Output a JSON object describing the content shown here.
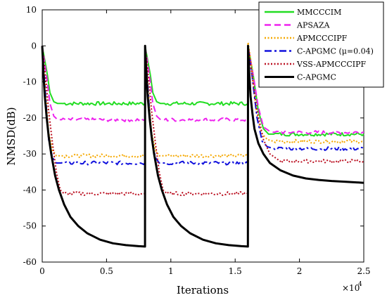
{
  "chart_data": {
    "type": "line",
    "title": "",
    "xlabel": "Iterations",
    "ylabel": "NMSD(dB)",
    "x_multiplier_label": "×10",
    "x_multiplier_exp": "4",
    "xlim": [
      0,
      25000
    ],
    "ylim": [
      -60,
      10
    ],
    "x_tick_values": [
      0,
      5000,
      10000,
      15000,
      20000,
      25000
    ],
    "x_tick_labels": [
      "0",
      "0.5",
      "1",
      "1.5",
      "2",
      "2.5"
    ],
    "y_ticks": [
      10,
      0,
      -10,
      -20,
      -30,
      -40,
      -50,
      -60
    ],
    "grid": false,
    "legend_position": "top-right",
    "change_points": [
      8000,
      16000
    ],
    "series": [
      {
        "name": "MMCCCIM",
        "color": "#22dd22",
        "style": "solid",
        "x": [
          0,
          400,
          600,
          900,
          1200,
          1500,
          7990,
          8000,
          8400,
          8600,
          8900,
          9200,
          9500,
          15990,
          16000,
          16400,
          16800,
          17200,
          17600,
          18000,
          25000
        ],
        "y": [
          0,
          -8,
          -13,
          -15.5,
          -16,
          -16,
          -16,
          0,
          -8,
          -13,
          -15.5,
          -16,
          -16,
          -16,
          0,
          -8,
          -18,
          -23,
          -24.5,
          -24.5,
          -24.5
        ]
      },
      {
        "name": "APSAZA",
        "color": "#ee22ee",
        "style": "dashed",
        "x": [
          0,
          400,
          600,
          900,
          1200,
          1500,
          7990,
          8000,
          8400,
          8600,
          8900,
          9200,
          9500,
          15990,
          16000,
          16400,
          16800,
          17200,
          17600,
          18000,
          25000
        ],
        "y": [
          0,
          -10,
          -16,
          -19.5,
          -20.5,
          -20.5,
          -20.5,
          0,
          -10,
          -16,
          -19.5,
          -20.5,
          -20.5,
          -20.5,
          0,
          -8,
          -17,
          -22.5,
          -23.5,
          -24,
          -24
        ]
      },
      {
        "name": "APMCCCIPF",
        "color": "#f5a800",
        "style": "dotted",
        "x": [
          0,
          300,
          500,
          800,
          1100,
          1500,
          7990,
          8000,
          8300,
          8500,
          8800,
          9100,
          9500,
          15990,
          16000,
          16300,
          16600,
          17000,
          17500,
          18000,
          25000
        ],
        "y": [
          0,
          -15,
          -24,
          -29,
          -30.5,
          -30.5,
          -30.5,
          0,
          -15,
          -24,
          -29,
          -30.5,
          -30.5,
          -30.5,
          1,
          -6,
          -17,
          -24,
          -26,
          -26.5,
          -26.5
        ]
      },
      {
        "name": "C-APGMC (μ=0.04)",
        "color": "#1111dd",
        "style": "dashdot",
        "x": [
          0,
          300,
          500,
          800,
          1100,
          1500,
          7990,
          8000,
          8300,
          8500,
          8800,
          9100,
          9500,
          15990,
          16000,
          16300,
          16700,
          17100,
          17500,
          18000,
          25000
        ],
        "y": [
          0,
          -16,
          -26,
          -31,
          -32.5,
          -32.5,
          -32.5,
          0,
          -16,
          -26,
          -31,
          -32.5,
          -32.5,
          -32.5,
          0,
          -8,
          -20,
          -26.5,
          -28,
          -28.5,
          -28.5
        ]
      },
      {
        "name": "VSS-APMCCCIPF",
        "color": "#bb1122",
        "style": "dotted",
        "x": [
          0,
          300,
          500,
          800,
          1100,
          1400,
          1700,
          7990,
          8000,
          8300,
          8500,
          8800,
          9100,
          9400,
          9700,
          15990,
          16000,
          16300,
          16700,
          17200,
          17700,
          18500,
          25000
        ],
        "y": [
          0,
          -10,
          -18,
          -27,
          -35,
          -40,
          -41,
          -41,
          0,
          -10,
          -18,
          -27,
          -35,
          -40,
          -41,
          -41,
          0,
          -8,
          -18,
          -26,
          -30,
          -32,
          -32
        ]
      },
      {
        "name": "C-APGMC",
        "color": "#000000",
        "style": "solid",
        "x": [
          0,
          100,
          200,
          350,
          500,
          700,
          1000,
          1300,
          1700,
          2200,
          2800,
          3500,
          4500,
          5500,
          6500,
          7500,
          7990,
          8000,
          8100,
          8200,
          8350,
          8500,
          8700,
          9000,
          9300,
          9700,
          10200,
          10800,
          11500,
          12500,
          13500,
          14500,
          15500,
          15990,
          16000,
          16100,
          16200,
          16350,
          16500,
          16800,
          17200,
          17700,
          18500,
          19500,
          20500,
          21500,
          22500,
          23500,
          25000
        ],
        "y": [
          0,
          -8,
          -14,
          -20,
          -25,
          -30,
          -36,
          -40,
          -44,
          -47.5,
          -50,
          -52,
          -53.8,
          -54.8,
          -55.3,
          -55.6,
          -55.7,
          0,
          -8,
          -14,
          -20,
          -25,
          -30,
          -36,
          -40,
          -44,
          -47.5,
          -50,
          -52,
          -53.8,
          -54.8,
          -55.3,
          -55.6,
          -55.7,
          0,
          -8,
          -14,
          -19,
          -23,
          -27,
          -30,
          -32.5,
          -34.5,
          -36,
          -36.8,
          -37.2,
          -37.5,
          -37.7,
          -38
        ]
      }
    ]
  }
}
